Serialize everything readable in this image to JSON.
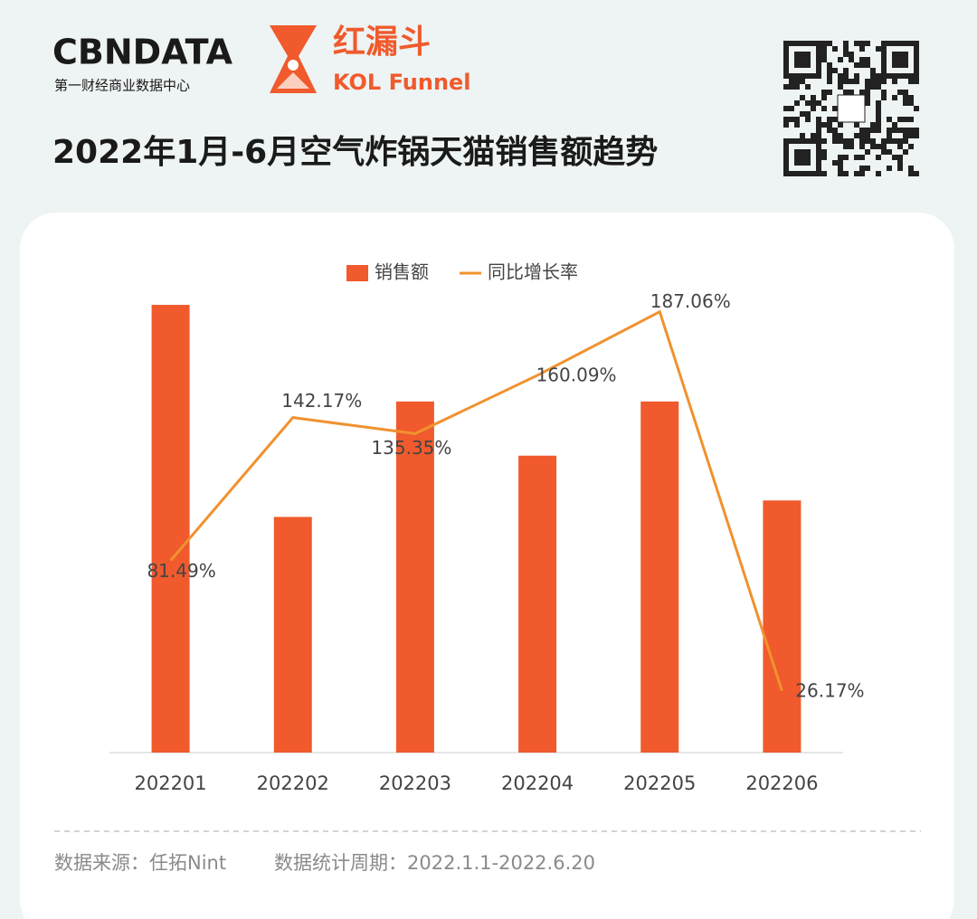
{
  "header": {
    "brand": "CBNDATA",
    "brand_sub": "第一财经商业数据中心",
    "logo_cn": "红漏斗",
    "logo_en": "KOL Funnel"
  },
  "chart_data": {
    "type": "bar",
    "title": "2022年1月-6月空气炸锅天猫销售额趋势",
    "categories": [
      "202201",
      "202202",
      "202203",
      "202204",
      "202205",
      "202206"
    ],
    "series": [
      {
        "name": "销售额",
        "type": "bar",
        "color": "#f05a2c",
        "values": [
          95,
          50,
          74.5,
          63,
          74.5,
          53.5
        ]
      },
      {
        "name": "同比增长率",
        "type": "line",
        "axis": "y2",
        "color": "#f0922f",
        "values": [
          81.49,
          142.17,
          135.35,
          160.09,
          187.06,
          26.17
        ],
        "value_labels": [
          "81.49%",
          "142.17%",
          "135.35%",
          "160.09%",
          "187.06%",
          "26.17%"
        ]
      }
    ],
    "ylim": [
      0,
      100
    ],
    "y2lim": [
      0,
      200
    ]
  },
  "footer": {
    "source": "数据来源：任拓Nint",
    "period": "数据统计周期：2022.1.1-2022.6.20"
  }
}
